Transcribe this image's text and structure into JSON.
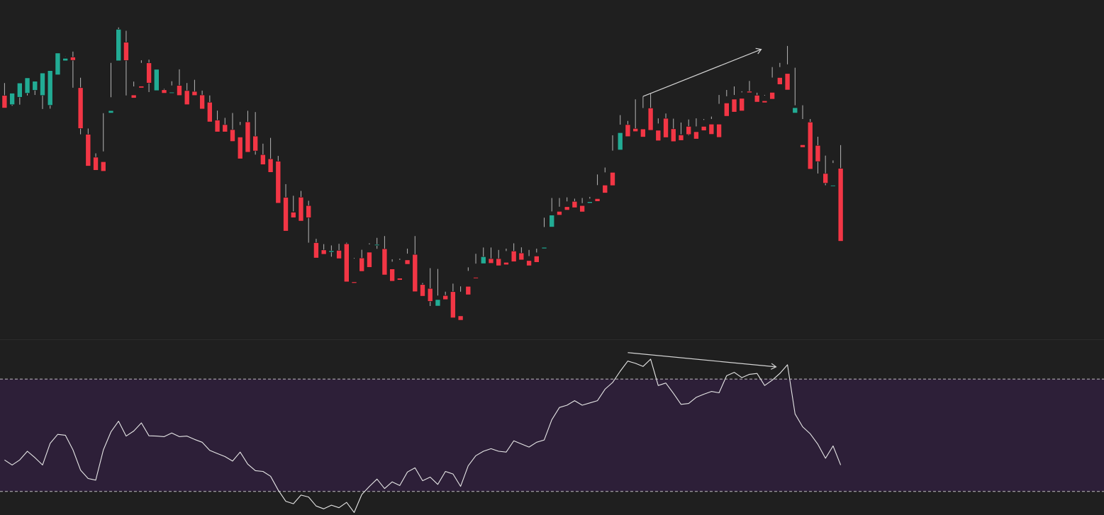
{
  "colors": {
    "background": "#1f1f1f",
    "up": "#22ab94",
    "down": "#f23645",
    "wick": "#b5b5b5",
    "divider": "#2b2b2b",
    "rsi_line": "#e6e6e6",
    "rsi_band": "#2d1f38",
    "level_line": "#d8d8d8",
    "trendline": "#d4d4d4"
  },
  "chart_data": [
    {
      "type": "candlestick",
      "name": "price",
      "x_index": "bar",
      "ylim": [
        150,
        360
      ],
      "grid": false,
      "ohlc": [
        [
          300.8,
          308.5,
          295.1,
          293.0
        ],
        [
          295.1,
          300.8,
          294.4,
          302.2
        ],
        [
          299.7,
          301.1,
          295.1,
          308.5
        ],
        [
          302.2,
          304.0,
          300.8,
          311.7
        ],
        [
          304.0,
          306.6,
          301.1,
          309.6
        ],
        [
          300.8,
          302.2,
          292.4,
          314.7
        ],
        [
          294.7,
          313.6,
          292.6,
          316.2
        ],
        [
          313.6,
          323.7,
          321.9,
          327.1
        ],
        [
          322.3,
          325.0,
          324.9,
          323.8
        ],
        [
          324.6,
          328.0,
          305.6,
          322.6
        ],
        [
          305.6,
          311.8,
          276.7,
          280.3
        ],
        [
          276.7,
          280.3,
          262.5,
          257.0
        ],
        [
          262.5,
          264.9,
          259.7,
          254.4
        ],
        [
          259.7,
          266.1,
          289.8,
          253.8
        ],
        [
          289.9,
          299.7,
          321.0,
          291.4
        ],
        [
          322.3,
          343.0,
          333.8,
          341.8
        ],
        [
          333.8,
          340.9,
          300.8,
          322.5
        ],
        [
          301.1,
          309.4,
          306.4,
          299.2
        ],
        [
          306.6,
          322.6,
          321.0,
          305.5
        ],
        [
          321.0,
          323.0,
          302.9,
          308.5
        ],
        [
          303.8,
          307.6,
          304.8,
          317.0
        ],
        [
          304.3,
          304.9,
          303.8,
          302.2
        ],
        [
          302.2,
          309.6,
          307.0,
          302.8
        ],
        [
          307.0,
          317.0,
          302.9,
          300.8
        ],
        [
          303.8,
          308.5,
          303.3,
          295.1
        ],
        [
          303.3,
          310.5,
          302.2,
          300.8
        ],
        [
          301.1,
          303.8,
          296.6,
          292.4
        ],
        [
          296.6,
          300.8,
          285.5,
          284.4
        ],
        [
          285.5,
          291.4,
          282.7,
          278.2
        ],
        [
          282.7,
          286.9,
          279.6,
          278.2
        ],
        [
          279.6,
          289.9,
          274.2,
          272.3
        ],
        [
          275.0,
          282.5,
          284.4,
          261.5
        ],
        [
          284.4,
          291.3,
          275.0,
          265.6
        ],
        [
          275.6,
          290.5,
          264.1,
          266.4
        ],
        [
          264.1,
          270.9,
          261.5,
          257.9
        ],
        [
          261.5,
          274.5,
          260.0,
          253.1
        ],
        [
          260.0,
          263.3,
          236.6,
          234.0
        ],
        [
          237.6,
          245.8,
          228.4,
          216.7
        ],
        [
          228.4,
          238.6,
          228.9,
          225.0
        ],
        [
          237.7,
          241.6,
          228.4,
          222.9
        ],
        [
          232.5,
          235.5,
          209.5,
          225.0
        ],
        [
          209.5,
          211.9,
          205.0,
          200.0
        ],
        [
          205.0,
          208.6,
          203.6,
          202.3
        ],
        [
          203.6,
          207.8,
          200.8,
          204.5
        ],
        [
          204.7,
          208.8,
          200.0,
          199.6
        ],
        [
          208.8,
          209.5,
          200.5,
          185.2
        ],
        [
          185.2,
          199.6,
          200.0,
          184.4
        ],
        [
          200.0,
          205.1,
          198.8,
          191.7
        ],
        [
          203.6,
          209.1,
          208.4,
          194.2
        ],
        [
          208.4,
          212.5,
          205.7,
          208.4
        ],
        [
          205.7,
          213.6,
          193.2,
          189.5
        ],
        [
          193.2,
          199.2,
          197.7,
          185.6
        ],
        [
          187.5,
          199.6,
          198.8,
          186.3
        ],
        [
          198.8,
          205.8,
          202.7,
          196.1
        ],
        [
          202.2,
          213.6,
          183.5,
          179.1
        ],
        [
          183.5,
          184.5,
          181.1,
          176.3
        ],
        [
          181.1,
          193.7,
          170.2,
          173.1
        ],
        [
          170.2,
          193.2,
          176.7,
          174.2
        ],
        [
          176.7,
          179.1,
          177.0,
          174.2
        ],
        [
          179.1,
          184.1,
          164.1,
          162.9
        ],
        [
          164.1,
          179.1,
          182.4,
          161.4
        ],
        [
          182.4,
          194.2,
          192.0,
          177.2
        ],
        [
          188.0,
          202.6,
          196.5,
          187.3
        ],
        [
          196.5,
          206.5,
          199.6,
          200.8
        ],
        [
          199.6,
          206.5,
          199.6,
          196.7
        ],
        [
          199.6,
          205.0,
          197.3,
          195.2
        ],
        [
          197.3,
          205.8,
          204.3,
          195.8
        ],
        [
          204.3,
          209.1,
          198.8,
          197.7
        ],
        [
          203.1,
          206.6,
          199.6,
          198.8
        ],
        [
          198.4,
          205.0,
          201.2,
          195.2
        ],
        [
          201.2,
          205.8,
          203.4,
          197.3
        ],
        [
          205.8,
          225.0,
          219.2,
          206.6
        ],
        [
          219.2,
          237.2,
          228.9,
          226.6
        ],
        [
          228.9,
          237.2,
          231.8,
          226.6
        ],
        [
          231.8,
          237.6,
          235.1,
          229.7
        ],
        [
          235.1,
          236.8,
          232.5,
          231.2
        ],
        [
          232.5,
          237.2,
          234.0,
          228.6
        ],
        [
          234.0,
          237.9,
          236.8,
          234.9
        ],
        [
          236.8,
          251.8,
          245.2,
          235.1
        ],
        [
          245.2,
          256.1,
          253.1,
          240.3
        ],
        [
          253.1,
          276.1,
          266.6,
          244.9
        ],
        [
          267.0,
          288.6,
          282.7,
          277.7
        ],
        [
          282.7,
          285.0,
          282.5,
          275.3
        ],
        [
          280.3,
          298.4,
          279.2,
          278.4
        ],
        [
          280.0,
          300.2,
          293.0,
          275.0
        ],
        [
          293.0,
          302.0,
          281.3,
          279.2
        ],
        [
          279.2,
          283.4,
          286.6,
          272.7
        ],
        [
          286.6,
          289.6,
          280.1,
          274.7
        ],
        [
          280.1,
          286.4,
          275.9,
          272.2
        ],
        [
          276.3,
          284.0,
          276.7,
          272.9
        ],
        [
          281.6,
          285.9,
          276.1,
          276.6
        ],
        [
          278.3,
          286.6,
          281.6,
          273.8
        ],
        [
          281.6,
          286.2,
          285.6,
          279.0
        ],
        [
          283.0,
          286.2,
          287.7,
          276.7
        ],
        [
          283.0,
          301.1,
          295.6,
          274.8
        ],
        [
          296.1,
          304.2,
          300.3,
          287.9
        ],
        [
          298.5,
          306.4,
          301.1,
          290.5
        ],
        [
          299.0,
          303.4,
          302.7,
          291.2
        ],
        [
          303.4,
          309.8,
          302.9,
          302.5
        ],
        [
          300.9,
          302.5,
          297.5,
          296.7
        ],
        [
          297.5,
          301.1,
          300.7,
          296.3
        ],
        [
          302.7,
          318.4,
          311.9,
          298.5
        ],
        [
          311.9,
          318.4,
          321.0,
          307.6
        ],
        [
          314.4,
          331.5,
          320.1,
          304.2
        ],
        [
          289.9,
          318.0,
          294.7,
          293.2
        ],
        [
          270.2,
          294.7,
          286.2,
          268.6
        ],
        [
          284.3,
          286.2,
          271.4,
          255.1
        ],
        [
          269.8,
          275.2,
          252.4,
          259.8
        ],
        [
          252.4,
          263.5,
          245.1,
          246.4
        ],
        [
          245.1,
          260.5,
          258.9,
          245.1
        ],
        [
          255.6,
          270.0,
          224.8,
          210.4
        ]
      ]
    },
    {
      "type": "line",
      "name": "rsi",
      "x_index": "bar",
      "ylim": [
        21.6,
        83.9
      ],
      "reference_lines": [
        70,
        30
      ],
      "values": [
        [
          0,
          41.2
        ],
        [
          1,
          39.4
        ],
        [
          2,
          41.2
        ],
        [
          3,
          44.3
        ],
        [
          4,
          42.0
        ],
        [
          5,
          39.4
        ],
        [
          6,
          47.1
        ],
        [
          7,
          50.3
        ],
        [
          8,
          50.0
        ],
        [
          9,
          44.8
        ],
        [
          10,
          37.6
        ],
        [
          11,
          34.6
        ],
        [
          12,
          34.0
        ],
        [
          13,
          44.8
        ],
        [
          14,
          51.2
        ],
        [
          15,
          55.0
        ],
        [
          16,
          49.7
        ],
        [
          17,
          51.5
        ],
        [
          18,
          54.4
        ],
        [
          19,
          49.8
        ],
        [
          20,
          49.7
        ],
        [
          21,
          49.5
        ],
        [
          22,
          50.8
        ],
        [
          23,
          49.5
        ],
        [
          24,
          49.7
        ],
        [
          25,
          48.5
        ],
        [
          26,
          47.5
        ],
        [
          27,
          44.6
        ],
        [
          28,
          43.5
        ],
        [
          29,
          42.4
        ],
        [
          30,
          40.8
        ],
        [
          31,
          44.0
        ],
        [
          32,
          39.7
        ],
        [
          33,
          37.4
        ],
        [
          34,
          37.1
        ],
        [
          35,
          35.4
        ],
        [
          36,
          30.5
        ],
        [
          37,
          26.5
        ],
        [
          38,
          25.6
        ],
        [
          39,
          28.7
        ],
        [
          40,
          28.0
        ],
        [
          41,
          24.8
        ],
        [
          42,
          23.8
        ],
        [
          43,
          25.1
        ],
        [
          44,
          24.2
        ],
        [
          45,
          26.1
        ],
        [
          46,
          22.5
        ],
        [
          47,
          28.9
        ],
        [
          48,
          31.8
        ],
        [
          49,
          34.4
        ],
        [
          50,
          31.0
        ],
        [
          51,
          33.4
        ],
        [
          52,
          32.1
        ],
        [
          53,
          36.9
        ],
        [
          54,
          38.4
        ],
        [
          55,
          33.8
        ],
        [
          56,
          35.1
        ],
        [
          57,
          32.5
        ],
        [
          58,
          37.1
        ],
        [
          59,
          36.2
        ],
        [
          60,
          31.8
        ],
        [
          61,
          39.1
        ],
        [
          62,
          42.7
        ],
        [
          63,
          44.3
        ],
        [
          64,
          45.2
        ],
        [
          65,
          44.3
        ],
        [
          66,
          44.0
        ],
        [
          67,
          48.0
        ],
        [
          68,
          46.9
        ],
        [
          69,
          45.8
        ],
        [
          70,
          47.5
        ],
        [
          71,
          48.3
        ],
        [
          72,
          55.5
        ],
        [
          73,
          59.9
        ],
        [
          74,
          60.7
        ],
        [
          75,
          62.3
        ],
        [
          76,
          60.7
        ],
        [
          77,
          61.5
        ],
        [
          78,
          62.3
        ],
        [
          79,
          66.4
        ],
        [
          80,
          68.8
        ],
        [
          81,
          72.8
        ],
        [
          82,
          76.4
        ],
        [
          83,
          75.6
        ],
        [
          84,
          74.5
        ],
        [
          85,
          77.1
        ],
        [
          86,
          67.7
        ],
        [
          87,
          68.6
        ],
        [
          88,
          64.9
        ],
        [
          89,
          61.0
        ],
        [
          90,
          61.3
        ],
        [
          91,
          63.5
        ],
        [
          92,
          64.6
        ],
        [
          93,
          65.6
        ],
        [
          94,
          65.1
        ],
        [
          95,
          71.2
        ],
        [
          96,
          72.4
        ],
        [
          97,
          70.5
        ],
        [
          98,
          71.7
        ],
        [
          99,
          72.0
        ],
        [
          100,
          67.7
        ],
        [
          101,
          69.6
        ],
        [
          102,
          72.0
        ],
        [
          103,
          75.1
        ],
        [
          104,
          57.6
        ],
        [
          105,
          53.0
        ],
        [
          106,
          50.5
        ],
        [
          107,
          46.8
        ],
        [
          108,
          41.8
        ],
        [
          109,
          46.2
        ],
        [
          110,
          39.4
        ]
      ]
    }
  ]
}
